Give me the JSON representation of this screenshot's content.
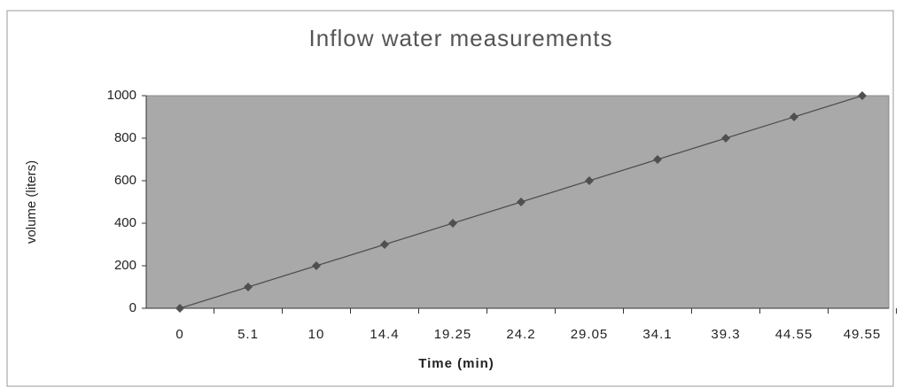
{
  "chart_data": {
    "type": "line",
    "title": "Inflow water measurements",
    "x_label": "Time (min)",
    "y_label": "volume (liters)",
    "categories": [
      "0",
      "5.1",
      "10",
      "14.4",
      "19.25",
      "24.2",
      "29.05",
      "34.1",
      "39.3",
      "44.55",
      "49.55"
    ],
    "values": [
      0,
      100,
      200,
      300,
      400,
      500,
      600,
      700,
      800,
      900,
      1000
    ],
    "color": "#505050",
    "marker": "diamond",
    "ylim": [
      0,
      1000
    ],
    "yticks": [
      0,
      200,
      400,
      600,
      800,
      1000
    ],
    "grid": false
  }
}
